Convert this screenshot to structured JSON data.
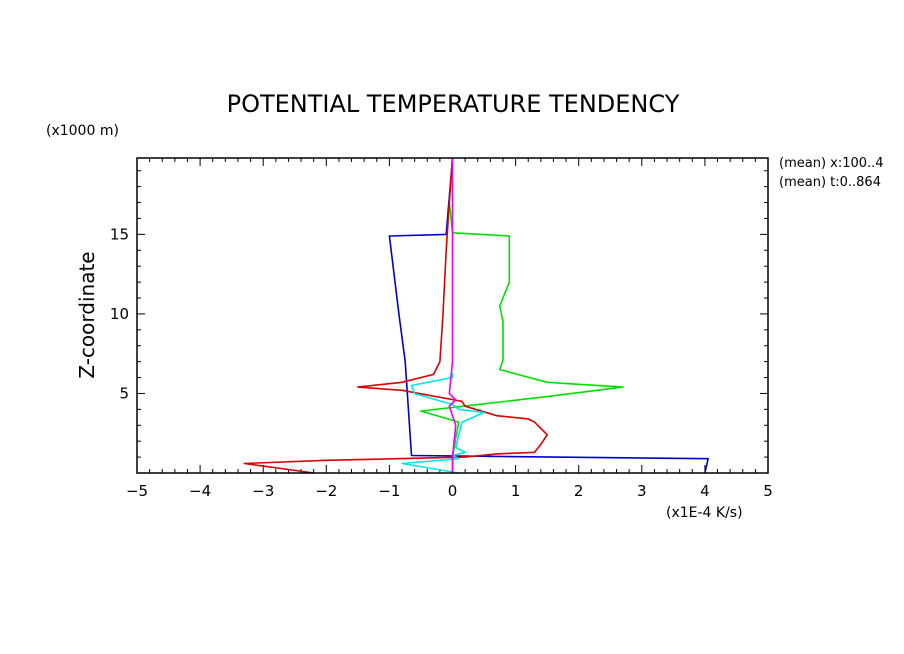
{
  "chart_data": {
    "type": "line",
    "title": "POTENTIAL TEMPERATURE TENDENCY",
    "xlabel": "(x1E-4 K/s)",
    "ylabel": "Z-coordinate",
    "yunit": "(x1000 m)",
    "annotations": [
      "(mean) x:100..4",
      "(mean) t:0..864"
    ],
    "xlim": [
      -5,
      5
    ],
    "ylim": [
      0.0,
      19.8
    ],
    "xticks": [
      -5,
      -4,
      -3,
      -2,
      -1,
      0,
      1,
      2,
      3,
      4,
      5
    ],
    "yticks": [
      5,
      10,
      15
    ],
    "grid": false,
    "series": [
      {
        "color": "#0000cc",
        "points": [
          [
            4.0,
            0.0
          ],
          [
            4.05,
            0.9
          ],
          [
            -0.65,
            1.1
          ],
          [
            -0.75,
            7.0
          ],
          [
            -0.85,
            10.0
          ],
          [
            -1.0,
            14.9
          ],
          [
            -0.1,
            15.0
          ],
          [
            0.0,
            19.8
          ]
        ]
      },
      {
        "color": "#00e000",
        "points": [
          [
            0.0,
            0.0
          ],
          [
            0.0,
            1.0
          ],
          [
            0.05,
            2.2
          ],
          [
            0.1,
            3.2
          ],
          [
            -0.5,
            3.9
          ],
          [
            0.4,
            4.3
          ],
          [
            1.5,
            4.8
          ],
          [
            2.7,
            5.4
          ],
          [
            1.5,
            5.7
          ],
          [
            0.75,
            6.5
          ],
          [
            0.8,
            7.1
          ],
          [
            0.8,
            9.5
          ],
          [
            0.75,
            10.5
          ],
          [
            0.9,
            12.0
          ],
          [
            0.9,
            14.9
          ],
          [
            0.0,
            15.1
          ],
          [
            -0.05,
            17.0
          ],
          [
            0.0,
            19.8
          ]
        ]
      },
      {
        "color": "#dd0000",
        "points": [
          [
            -2.2,
            0.0
          ],
          [
            -3.3,
            0.6
          ],
          [
            -2.0,
            0.8
          ],
          [
            0.2,
            1.0
          ],
          [
            0.7,
            1.2
          ],
          [
            1.3,
            1.3
          ],
          [
            1.4,
            1.8
          ],
          [
            1.5,
            2.4
          ],
          [
            1.3,
            3.2
          ],
          [
            1.2,
            3.4
          ],
          [
            0.7,
            3.6
          ],
          [
            0.2,
            4.2
          ],
          [
            0.15,
            4.5
          ],
          [
            -0.8,
            5.2
          ],
          [
            -1.5,
            5.4
          ],
          [
            -0.8,
            5.7
          ],
          [
            -0.3,
            6.2
          ],
          [
            -0.2,
            7.0
          ],
          [
            -0.15,
            10.0
          ],
          [
            -0.1,
            14.0
          ],
          [
            -0.05,
            17.0
          ],
          [
            0.0,
            19.8
          ]
        ]
      },
      {
        "color": "#00e6e6",
        "points": [
          [
            0.1,
            0.0
          ],
          [
            -0.8,
            0.6
          ],
          [
            0.1,
            0.9
          ],
          [
            0.0,
            1.1
          ],
          [
            0.2,
            1.3
          ],
          [
            0.05,
            1.6
          ],
          [
            0.1,
            2.4
          ],
          [
            0.15,
            3.2
          ],
          [
            0.5,
            3.8
          ],
          [
            0.1,
            4.0
          ],
          [
            0.0,
            4.3
          ],
          [
            -0.6,
            5.0
          ],
          [
            -0.65,
            5.5
          ],
          [
            0.0,
            6.0
          ],
          [
            0.0,
            6.3
          ]
        ]
      },
      {
        "color": "#ee00ee",
        "points": [
          [
            0.0,
            0.0
          ],
          [
            0.0,
            1.0
          ],
          [
            0.05,
            3.0
          ],
          [
            -0.05,
            4.2
          ],
          [
            0.05,
            4.6
          ],
          [
            -0.05,
            5.0
          ],
          [
            0.0,
            7.0
          ],
          [
            0.0,
            19.8
          ]
        ]
      }
    ]
  }
}
